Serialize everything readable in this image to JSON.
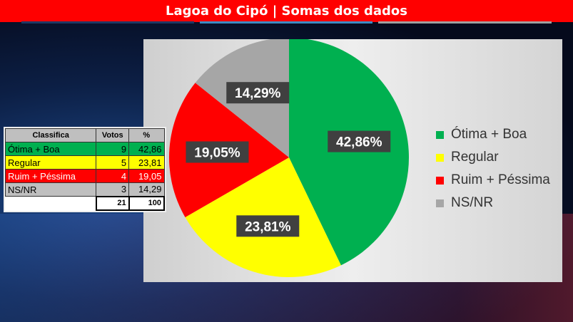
{
  "title": "Lagoa do Cipó | Somas dos dados",
  "table": {
    "headers": [
      "Classifica",
      "Votos",
      "%"
    ],
    "rows": [
      {
        "label": "Ótima + Boa",
        "votes": "9",
        "pct": "42,86",
        "color": "#00b050",
        "text": "#000"
      },
      {
        "label": "Regular",
        "votes": "5",
        "pct": "23,81",
        "color": "#ffff00",
        "text": "#000"
      },
      {
        "label": "Ruim + Péssima",
        "votes": "4",
        "pct": "19,05",
        "color": "#ff0000",
        "text": "#fff"
      },
      {
        "label": "NS/NR",
        "votes": "3",
        "pct": "14,29",
        "color": "#bfbfbf",
        "text": "#000"
      }
    ],
    "total_votes": "21",
    "total_pct": "100"
  },
  "chart_data": {
    "type": "pie",
    "categories": [
      "Ótima + Boa",
      "Regular",
      "Ruim + Péssima",
      "NS/NR"
    ],
    "values": [
      42.86,
      23.81,
      19.05,
      14.29
    ],
    "labels": [
      "42,86%",
      "23,81%",
      "19,05%",
      "14,29%"
    ],
    "colors": [
      "#00b050",
      "#ffff00",
      "#ff0000",
      "#a6a6a6"
    ],
    "legend": "right"
  }
}
